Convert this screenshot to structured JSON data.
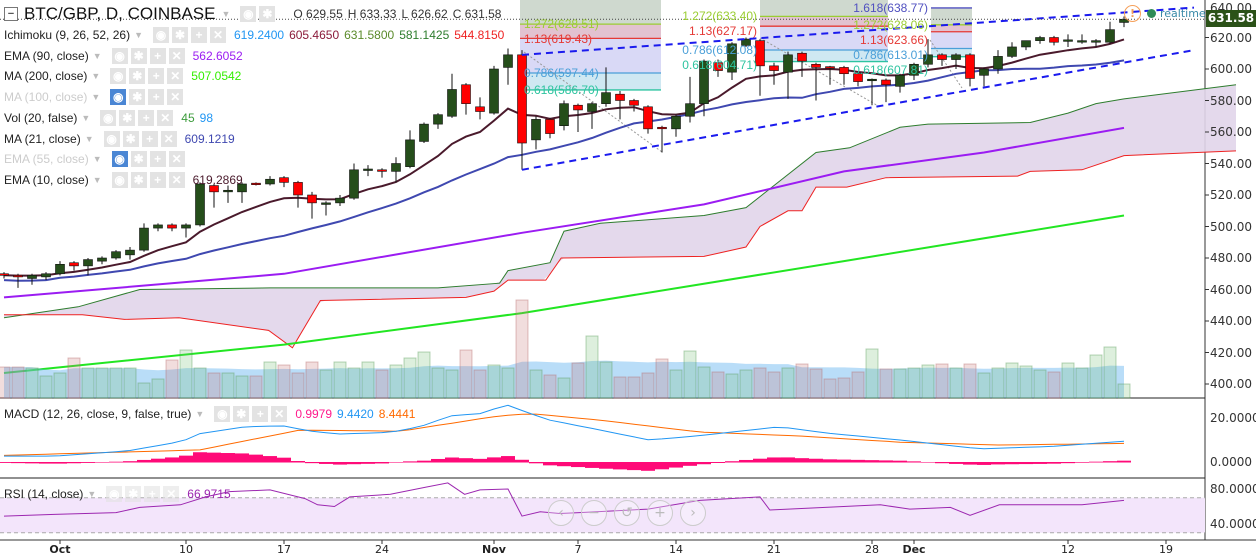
{
  "header": {
    "title": "BTC/GBP, D, COINBASE",
    "open": "O 629.55",
    "high": "H 633.33",
    "low": "L 626.62",
    "close": "C 631.58"
  },
  "indicators": [
    {
      "name": "Ichimoku (9, 26, 52, 26)",
      "values": [
        {
          "v": "619.2400",
          "color": "#2196f3"
        },
        {
          "v": "605.4650",
          "color": "#8b1a3a"
        },
        {
          "v": "631.5800",
          "color": "#5a8a2a"
        },
        {
          "v": "581.1425",
          "color": "#2e7d2e"
        },
        {
          "v": "544.8150",
          "color": "#ee2222"
        }
      ],
      "visible": true
    },
    {
      "name": "EMA (90, close)",
      "values": [
        {
          "v": "562.6052",
          "color": "#9b1cf2"
        }
      ],
      "visible": true
    },
    {
      "name": "MA (200, close)",
      "values": [
        {
          "v": "507.0542",
          "color": "#33ee00"
        }
      ],
      "visible": true
    },
    {
      "name": "MA (100, close)",
      "values": [],
      "visible": false
    },
    {
      "name": "Vol (20, false)",
      "values": [
        {
          "v": "45",
          "color": "#3c9c3c"
        },
        {
          "v": "98",
          "color": "#2196f3"
        }
      ],
      "visible": true
    },
    {
      "name": "MA (21, close)",
      "values": [
        {
          "v": "609.1219",
          "color": "#3f48b0"
        }
      ],
      "visible": true
    },
    {
      "name": "EMA (55, close)",
      "values": [],
      "visible": false
    },
    {
      "name": "EMA (10, close)",
      "values": [
        {
          "v": "619.2869",
          "color": "#4a1a2c"
        }
      ],
      "visible": true
    }
  ],
  "macd_legend": {
    "name": "MACD (12, 26, close, 9, false, true)",
    "hist": "0.9979",
    "macd": "9.4420",
    "signal": "8.4441"
  },
  "rsi_legend": {
    "name": "RSI (14, close)",
    "value": "66.9715"
  },
  "realtime": "realtime",
  "current_price": "631.58",
  "price_axis": [
    "640.00",
    "620.00",
    "600.00",
    "580.00",
    "560.00",
    "540.00",
    "520.00",
    "500.00",
    "480.00",
    "460.00",
    "440.00",
    "420.00",
    "400.00"
  ],
  "macd_axis": [
    "20.0000",
    "0.0000"
  ],
  "rsi_axis": [
    "80.0000",
    "40.0000"
  ],
  "date_axis": [
    {
      "label": "Oct",
      "day": 4
    },
    {
      "label": "10",
      "day": 13
    },
    {
      "label": "17",
      "day": 20
    },
    {
      "label": "24",
      "day": 27
    },
    {
      "label": "Nov",
      "day": 35
    },
    {
      "label": "7",
      "day": 41
    },
    {
      "label": "14",
      "day": 48
    },
    {
      "label": "21",
      "day": 55
    },
    {
      "label": "28",
      "day": 62
    },
    {
      "label": "Dec",
      "day": 65
    },
    {
      "label": "12",
      "day": 76
    },
    {
      "label": "19",
      "day": 83
    }
  ],
  "zoom_controls": [
    "‹",
    "−",
    "↺",
    "+",
    "›"
  ],
  "colors": {
    "up": "#254e1a",
    "down": "#ff0000",
    "ema10": "#4a1a2c",
    "ma21": "#3f48b0",
    "ema90": "#9b1cf2",
    "ma200": "#22e622",
    "spanA": "#2e7d2e",
    "spanB": "#ee2222",
    "cloud": "#e1d5ea",
    "macd": "#2196f3",
    "signal": "#ff6a00",
    "hist": "#ff0a78",
    "rsi": "#9c27b0"
  },
  "fib_groups": [
    {
      "levels": [
        {
          "label": "1.272(628.51)",
          "price": 628.51,
          "color": "#9acd32"
        },
        {
          "label": "1.13(619.43)",
          "price": 619.43,
          "color": "#e53935"
        },
        {
          "label": "0.786(597.44)",
          "price": 597.44,
          "color": "#4a9fd8"
        },
        {
          "label": "0.618(586.70)",
          "price": 586.7,
          "color": "#2ec4a0"
        }
      ]
    },
    {
      "levels": [
        {
          "label": "1.272(633.40)",
          "price": 633.4,
          "color": "#9acd32"
        },
        {
          "label": "1.13(627.17)",
          "price": 627.17,
          "color": "#e53935"
        },
        {
          "label": "0.786(612.08)",
          "price": 612.08,
          "color": "#4a9fd8"
        },
        {
          "label": "0.618(604.71)",
          "price": 604.71,
          "color": "#2ec4a0"
        }
      ]
    },
    {
      "levels": [
        {
          "label": "1.618(638.77)",
          "price": 638.77,
          "color": "#5050c0"
        },
        {
          "label": "1.272(628.06)",
          "price": 628.06,
          "color": "#9acd32"
        },
        {
          "label": "1.13(623.66)",
          "price": 623.66,
          "color": "#e53935"
        },
        {
          "label": "0.786(613.01)",
          "price": 613.01,
          "color": "#4a9fd8"
        },
        {
          "label": "0.618(607.81)",
          "price": 607.81,
          "color": "#2ec4a0"
        }
      ]
    }
  ],
  "chart_data": {
    "type": "candlestick",
    "ylim": [
      390,
      645
    ],
    "ohlc": [
      [
        470,
        471,
        467,
        469
      ],
      [
        469,
        470,
        461,
        468
      ],
      [
        467,
        470,
        463,
        469
      ],
      [
        468,
        471,
        466,
        470
      ],
      [
        470,
        478,
        469,
        476
      ],
      [
        477,
        478,
        472,
        475
      ],
      [
        475,
        480,
        469,
        479
      ],
      [
        478,
        481,
        476,
        480
      ],
      [
        480,
        485,
        479,
        484
      ],
      [
        482,
        487,
        479,
        485
      ],
      [
        485,
        502,
        484,
        499
      ],
      [
        499,
        502,
        497,
        501
      ],
      [
        501,
        502,
        497,
        499
      ],
      [
        499,
        502,
        493,
        501
      ],
      [
        501,
        528,
        500,
        527
      ],
      [
        526,
        527,
        512,
        522
      ],
      [
        522,
        526,
        515,
        523
      ],
      [
        522,
        528,
        515,
        527
      ],
      [
        527.5,
        528,
        526,
        527
      ],
      [
        527,
        532,
        526,
        530
      ],
      [
        531,
        532,
        525,
        528
      ],
      [
        528,
        529,
        512,
        520
      ],
      [
        520,
        522,
        505,
        515
      ],
      [
        514,
        516,
        507,
        515
      ],
      [
        515,
        520,
        513,
        518
      ],
      [
        518,
        540,
        517,
        536
      ],
      [
        536,
        539,
        532,
        536.5
      ],
      [
        536,
        537,
        531,
        535
      ],
      [
        535,
        544,
        528,
        540
      ],
      [
        538,
        561,
        537,
        555
      ],
      [
        554,
        566,
        553,
        565
      ],
      [
        565,
        572,
        562,
        571
      ],
      [
        570,
        597,
        569,
        587
      ],
      [
        590,
        591,
        571,
        578
      ],
      [
        576,
        582,
        568,
        573
      ],
      [
        572,
        602,
        571,
        600
      ],
      [
        601,
        613,
        590,
        609
      ],
      [
        609,
        612,
        536,
        553
      ],
      [
        555,
        570,
        549,
        568
      ],
      [
        568,
        569,
        556,
        559
      ],
      [
        564,
        580,
        561,
        578
      ],
      [
        577,
        578,
        560,
        574
      ],
      [
        573,
        579,
        562,
        578
      ],
      [
        578,
        601,
        576,
        585
      ],
      [
        584,
        586,
        568,
        580
      ],
      [
        580,
        581,
        573,
        577
      ],
      [
        576,
        577,
        559,
        562
      ],
      [
        563,
        564,
        547,
        562.5
      ],
      [
        562,
        571,
        557,
        570
      ],
      [
        570,
        595,
        566,
        578
      ],
      [
        578,
        606,
        570,
        605
      ],
      [
        604,
        606,
        595,
        599
      ],
      [
        598,
        617,
        593,
        616
      ],
      [
        615,
        620,
        614,
        619
      ],
      [
        618,
        619,
        583,
        602
      ],
      [
        602,
        604,
        590,
        599
      ],
      [
        598,
        611,
        581,
        609
      ],
      [
        610,
        611,
        595,
        605
      ],
      [
        603,
        604,
        580,
        601
      ],
      [
        601.5,
        602,
        590,
        601
      ],
      [
        601,
        602,
        590,
        597
      ],
      [
        597,
        598,
        589,
        592
      ],
      [
        593,
        594,
        577,
        593.5
      ],
      [
        593,
        594,
        579,
        590
      ],
      [
        589,
        597,
        585,
        596
      ],
      [
        596,
        604,
        593,
        603
      ],
      [
        603,
        619,
        601,
        609
      ],
      [
        609,
        610,
        602,
        606
      ],
      [
        606,
        610,
        600,
        609
      ],
      [
        609,
        610,
        589,
        594
      ],
      [
        596,
        601,
        589,
        600
      ],
      [
        600,
        612,
        597,
        608
      ],
      [
        608,
        617,
        607,
        614
      ],
      [
        614,
        618,
        612,
        618
      ],
      [
        618,
        621,
        616,
        620
      ],
      [
        620,
        621,
        615,
        617
      ],
      [
        618,
        622,
        614,
        618.5
      ],
      [
        617.5,
        622,
        616,
        618
      ],
      [
        617,
        619,
        614,
        618
      ],
      [
        617,
        630,
        616,
        625
      ],
      [
        629.55,
        633.33,
        626.62,
        631.58
      ]
    ],
    "volume": [
      31,
      31,
      30,
      22,
      25,
      40,
      30,
      30,
      30,
      30,
      15,
      19,
      38,
      48,
      30,
      25,
      25,
      22,
      22,
      36,
      33,
      25,
      36,
      28,
      36,
      30,
      36,
      28,
      33,
      40,
      46,
      30,
      28,
      48,
      28,
      33,
      30,
      98,
      28,
      23,
      20,
      35,
      62,
      36,
      21,
      21,
      25,
      39,
      28,
      47,
      31,
      26,
      24,
      28,
      30,
      26,
      30,
      34,
      29,
      19,
      20,
      26,
      49,
      29,
      29,
      30,
      33,
      34,
      30,
      34,
      25,
      30,
      35,
      32,
      28,
      26,
      35,
      30,
      43,
      51,
      14
    ],
    "ema90": [
      [
        0,
        455
      ],
      [
        20,
        470
      ],
      [
        37,
        496
      ],
      [
        50,
        514
      ],
      [
        60,
        535
      ],
      [
        70,
        547
      ],
      [
        80,
        562.6
      ]
    ],
    "ma200": [
      [
        0,
        407
      ],
      [
        20,
        425
      ],
      [
        37,
        445
      ],
      [
        60,
        478
      ],
      [
        80,
        507
      ]
    ],
    "span_a": [
      [
        0,
        442
      ],
      [
        5.3,
        449
      ],
      [
        9.7,
        460
      ],
      [
        19,
        461
      ],
      [
        31,
        461
      ],
      [
        35.4,
        464
      ],
      [
        36,
        472
      ],
      [
        39,
        477
      ],
      [
        40,
        497
      ],
      [
        42.6,
        502
      ],
      [
        50,
        507
      ],
      [
        53,
        512
      ],
      [
        58,
        547
      ],
      [
        60.4,
        550
      ],
      [
        64,
        563
      ],
      [
        66,
        565
      ],
      [
        73.3,
        566
      ],
      [
        76,
        572
      ],
      [
        78,
        578
      ],
      [
        80,
        581
      ],
      [
        88,
        590
      ]
    ],
    "span_b": [
      [
        0,
        444
      ],
      [
        5.6,
        444
      ],
      [
        8.6,
        441
      ],
      [
        12.5,
        442
      ],
      [
        18.9,
        434
      ],
      [
        20.6,
        423
      ],
      [
        22.6,
        453
      ],
      [
        33,
        455
      ],
      [
        35,
        459
      ],
      [
        36,
        466
      ],
      [
        38.7,
        466
      ],
      [
        39.8,
        480
      ],
      [
        50,
        481
      ],
      [
        53,
        487
      ],
      [
        54,
        500
      ],
      [
        56,
        510
      ],
      [
        57,
        510
      ],
      [
        58,
        525
      ],
      [
        60.2,
        525
      ],
      [
        63,
        531
      ],
      [
        72.4,
        532
      ],
      [
        73.3,
        535
      ],
      [
        77,
        536
      ],
      [
        80,
        545
      ],
      [
        88,
        548
      ]
    ],
    "macd": [
      [
        0,
        2.7
      ],
      [
        3.6,
        2.7
      ],
      [
        8.8,
        5
      ],
      [
        12.8,
        9.5
      ],
      [
        13.8,
        12.7
      ],
      [
        17.2,
        16
      ],
      [
        19.9,
        16.5
      ],
      [
        21.9,
        14
      ],
      [
        23.9,
        12.7
      ],
      [
        27.6,
        13.5
      ],
      [
        29.7,
        16
      ],
      [
        31.9,
        21
      ],
      [
        34,
        22
      ],
      [
        35.9,
        26
      ],
      [
        37.6,
        22
      ],
      [
        39,
        19
      ],
      [
        42.6,
        14.5
      ],
      [
        46.1,
        10
      ],
      [
        49.7,
        12
      ],
      [
        55.4,
        16
      ],
      [
        59,
        13
      ],
      [
        64,
        10
      ],
      [
        69.7,
        6
      ],
      [
        74.7,
        7
      ],
      [
        80,
        9.44
      ]
    ],
    "signal": [
      [
        0,
        3
      ],
      [
        14,
        5.5
      ],
      [
        21.1,
        14.5
      ],
      [
        28.3,
        14
      ],
      [
        35.4,
        21
      ],
      [
        37.6,
        22
      ],
      [
        42.6,
        19
      ],
      [
        49.7,
        13.6
      ],
      [
        56.9,
        11.8
      ],
      [
        64,
        9
      ],
      [
        71.1,
        7.7
      ],
      [
        80,
        8.44
      ]
    ],
    "rsi": [
      [
        0,
        49
      ],
      [
        3.6,
        51
      ],
      [
        8,
        53
      ],
      [
        9.7,
        59
      ],
      [
        12.6,
        62
      ],
      [
        14.4,
        71
      ],
      [
        16.1,
        77
      ],
      [
        19,
        79
      ],
      [
        21.5,
        69
      ],
      [
        22.4,
        62
      ],
      [
        23.6,
        60
      ],
      [
        24.7,
        71
      ],
      [
        27.6,
        74
      ],
      [
        30.1,
        82
      ],
      [
        31.7,
        87
      ],
      [
        32.9,
        74
      ],
      [
        34,
        79
      ],
      [
        36,
        80
      ],
      [
        37,
        49
      ],
      [
        38.3,
        54
      ],
      [
        39.7,
        52
      ],
      [
        41.1,
        53
      ],
      [
        46,
        57
      ],
      [
        49.7,
        67
      ],
      [
        54,
        71
      ],
      [
        54.7,
        56
      ],
      [
        62.6,
        62
      ],
      [
        64.7,
        57
      ],
      [
        67.6,
        59
      ],
      [
        69,
        50
      ],
      [
        71.1,
        62
      ],
      [
        77,
        62
      ],
      [
        80,
        66.97
      ]
    ],
    "trendlines": [
      {
        "from": [
          37,
          609
        ],
        "to": [
          85,
          639
        ]
      },
      {
        "from": [
          37,
          536
        ],
        "to": [
          85,
          612
        ]
      }
    ]
  }
}
